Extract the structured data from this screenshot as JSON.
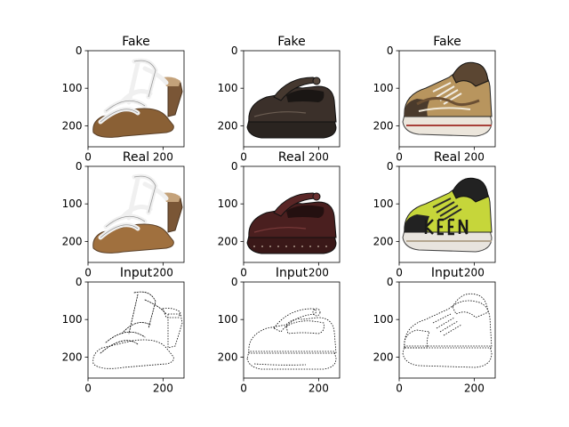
{
  "chart_data": {
    "type": "image-grid",
    "xlim": [
      0,
      256
    ],
    "ylim": [
      256,
      0
    ],
    "x_ticks": [
      0,
      200
    ],
    "y_ticks": [
      0,
      100,
      200
    ],
    "rows": [
      {
        "title": "Fake",
        "panels": [
          {
            "subject": "white strappy heeled sandal",
            "style": "photo"
          },
          {
            "subject": "dark brown mary-jane clog",
            "style": "photo"
          },
          {
            "subject": "brown/white patterned sneaker",
            "style": "photo"
          }
        ]
      },
      {
        "title": "Real",
        "panels": [
          {
            "subject": "white strappy heeled sandal",
            "style": "photo"
          },
          {
            "subject": "burgundy mary-jane clog",
            "style": "photo"
          },
          {
            "subject": "lime and black KEEN sneaker",
            "style": "photo"
          }
        ]
      },
      {
        "title": "Input",
        "panels": [
          {
            "subject": "sandal edge map",
            "style": "edges"
          },
          {
            "subject": "clog edge map",
            "style": "edges"
          },
          {
            "subject": "sneaker edge map",
            "style": "edges"
          }
        ]
      }
    ],
    "colors": {
      "sandal_strap": "#f0f0f0",
      "sandal_sole": "#a0703e",
      "clog_dark": "#3b302a",
      "clog_burgundy": "#4a1f1f",
      "sneaker_lime": "#c6d63a",
      "sneaker_black": "#222222",
      "sneaker_fake": "#b8955e"
    }
  }
}
